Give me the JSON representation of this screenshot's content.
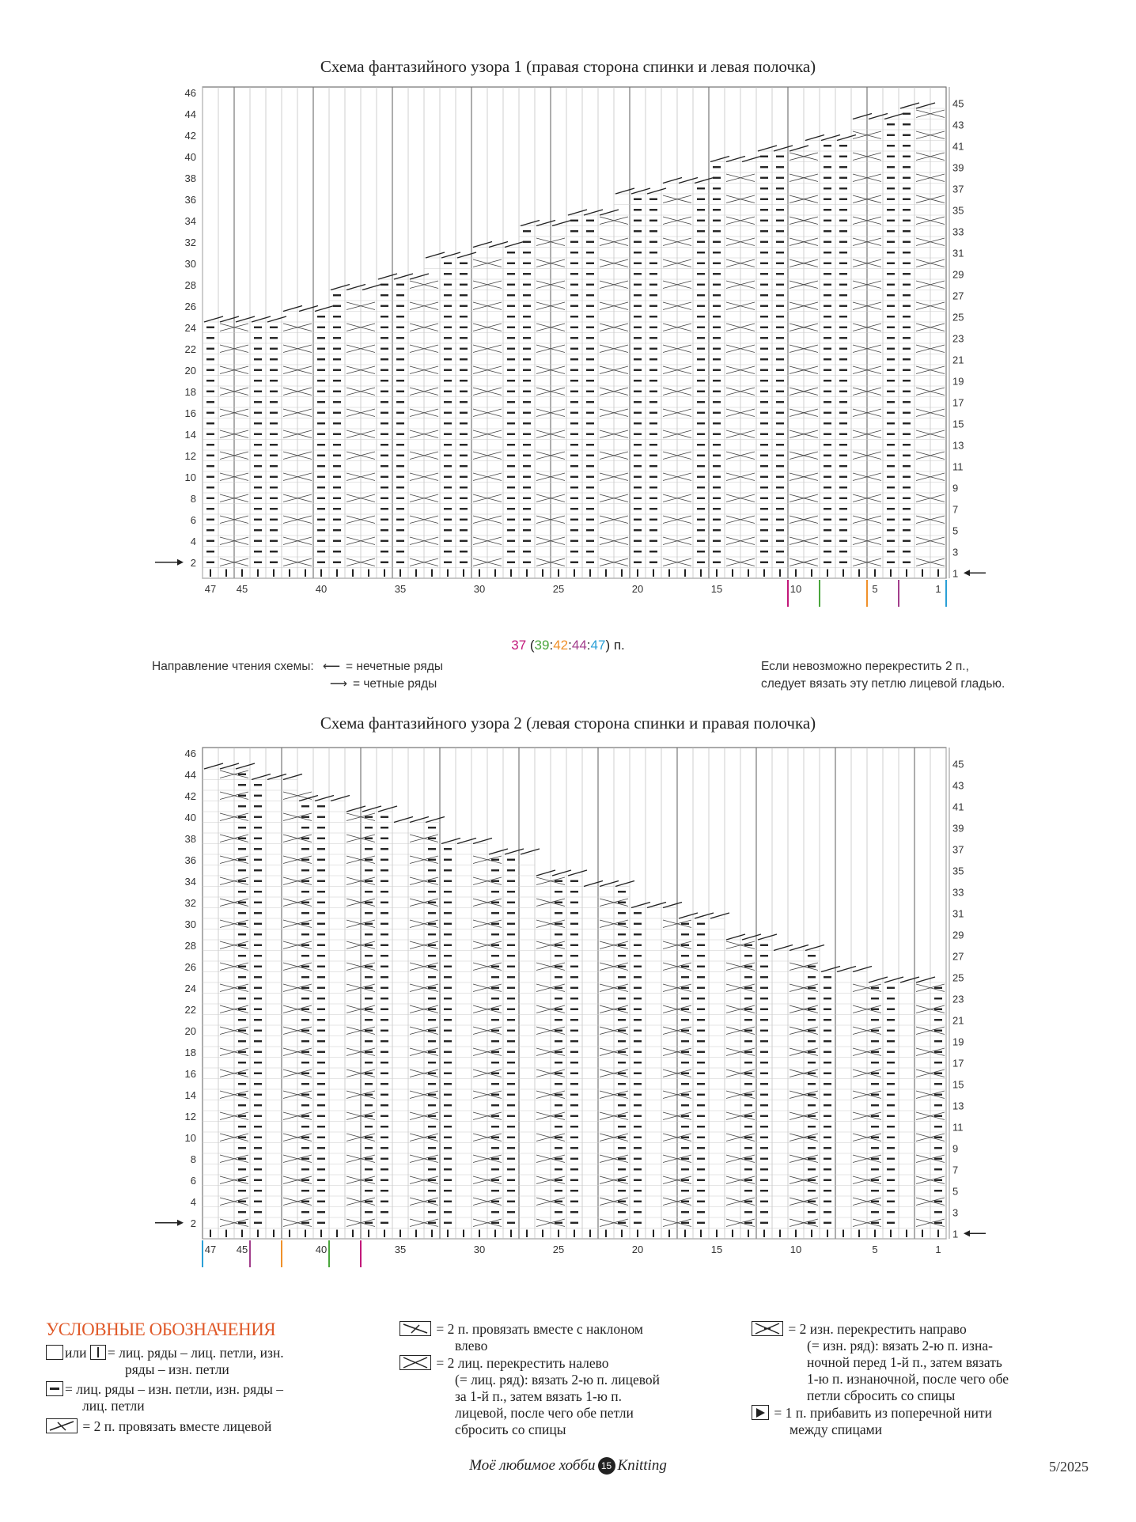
{
  "chart1": {
    "title": "Схема фантазийного узора 1 (правая сторона спинки и левая полочка)",
    "left_row_labels": [
      "46",
      "44",
      "42",
      "40",
      "38",
      "36",
      "34",
      "32",
      "30",
      "28",
      "26",
      "24",
      "22",
      "20",
      "18",
      "16",
      "14",
      "12",
      "10",
      "8",
      "6",
      "4",
      "2"
    ],
    "right_row_labels": [
      "45",
      "43",
      "41",
      "39",
      "37",
      "35",
      "33",
      "31",
      "29",
      "27",
      "25",
      "23",
      "21",
      "19",
      "17",
      "15",
      "13",
      "11",
      "9",
      "7",
      "5",
      "3",
      "1"
    ],
    "col_labels": [
      "47",
      "45",
      "40",
      "35",
      "30",
      "25",
      "20",
      "15",
      "10",
      "5",
      "1"
    ],
    "count": {
      "main": "37",
      "open": " (",
      "s1": "39",
      "s2": "42",
      "s3": "44",
      "s4": "47",
      "close": ") п.",
      "colors": {
        "main": "#c2187a",
        "s1": "#4aa63c",
        "s2": "#f0902a",
        "s3": "#a23e8c",
        "s4": "#2a9fd6"
      }
    },
    "direction_label": "Направление чтения схемы:",
    "odd_rows": "= нечетные ряды",
    "even_rows": "= четные ряды",
    "note_line1": "Если невозможно перекрестить 2 п.,",
    "note_line2": "следует вязать эту петлю лицевой гладью."
  },
  "chart2": {
    "title": "Схема фантазийного узора 2 (левая сторона спинки и правая полочка)",
    "left_row_labels": [
      "46",
      "44",
      "42",
      "40",
      "38",
      "36",
      "34",
      "32",
      "30",
      "28",
      "26",
      "24",
      "22",
      "20",
      "18",
      "16",
      "14",
      "12",
      "10",
      "8",
      "6",
      "4",
      "2"
    ],
    "right_row_labels": [
      "45",
      "43",
      "41",
      "39",
      "37",
      "35",
      "33",
      "31",
      "29",
      "27",
      "25",
      "23",
      "21",
      "19",
      "17",
      "15",
      "13",
      "11",
      "9",
      "7",
      "5",
      "3",
      "1"
    ],
    "col_labels": [
      "47",
      "45",
      "40",
      "35",
      "30",
      "25",
      "20",
      "15",
      "10",
      "5",
      "1"
    ]
  },
  "legend": {
    "title": "УСЛОВНЫЕ ОБОЗНАЧЕНИЯ",
    "item1_or": "или",
    "item1_a": "= лиц. ряды – лиц. петли, изн.",
    "item1_b": "ряды – изн. петли",
    "item2_a": "= лиц. ряды – изн. петли, изн. ряды –",
    "item2_b": "лиц. петли",
    "item3": "= 2 п. провязать вместе лицевой",
    "item4_a": "= 2 п. провязать вместе с наклоном",
    "item4_b": "влево",
    "item5_a": "= 2 лиц. перекрестить налево",
    "item5_b": "(= лиц. ряд): вязать 2-ю п. лицевой",
    "item5_c": "за 1-й п., затем вязать 1-ю п.",
    "item5_d": "лицевой, после чего обе петли",
    "item5_e": "сбросить со спицы",
    "item6_a": "= 2 изн. перекрестить направо",
    "item6_b": "(= изн. ряд): вязать 2-ю п. изна-",
    "item6_c": "ночной перед 1-й п., затем вязать",
    "item6_d": "1-ю п. изнаночной, после чего обе",
    "item6_e": "петли сбросить со спицы",
    "item7_a": "= 1 п. прибавить из поперечной нити",
    "item7_b": "между спицами"
  },
  "footer": {
    "magazine": "Моё любимое хобби",
    "issue_badge": "15",
    "brand": "Knitting",
    "date": "5/2025"
  }
}
